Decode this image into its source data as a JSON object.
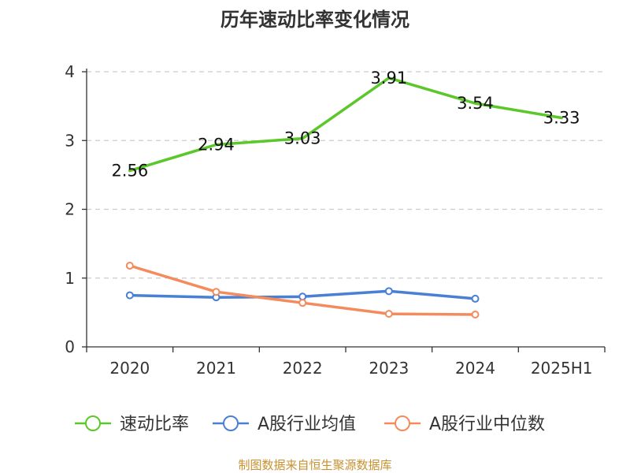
{
  "chart_data": {
    "type": "line",
    "title": "历年速动比率变化情况",
    "categories": [
      "2020",
      "2021",
      "2022",
      "2023",
      "2024",
      "2025H1"
    ],
    "ylim": [
      0,
      4
    ],
    "yticks": [
      0,
      1,
      2,
      3,
      4
    ],
    "grid": true,
    "legend_position": "bottom",
    "series": [
      {
        "name": "速动比率",
        "color": "#5cc72b",
        "values": [
          2.56,
          2.94,
          3.03,
          3.91,
          3.54,
          3.33
        ],
        "labels": [
          "2.56",
          "2.94",
          "3.03",
          "3.91",
          "3.54",
          "3.33"
        ],
        "show_labels": true,
        "show_markers": false
      },
      {
        "name": "A股行业均值",
        "color": "#4a7fd6",
        "values": [
          0.75,
          0.72,
          0.73,
          0.81,
          0.7,
          null
        ],
        "show_labels": false,
        "show_markers": true
      },
      {
        "name": "A股行业中位数",
        "color": "#f48b5c",
        "values": [
          1.18,
          0.8,
          0.64,
          0.48,
          0.47,
          null
        ],
        "show_labels": false,
        "show_markers": true
      }
    ]
  },
  "footer": "制图数据来自恒生聚源数据库"
}
